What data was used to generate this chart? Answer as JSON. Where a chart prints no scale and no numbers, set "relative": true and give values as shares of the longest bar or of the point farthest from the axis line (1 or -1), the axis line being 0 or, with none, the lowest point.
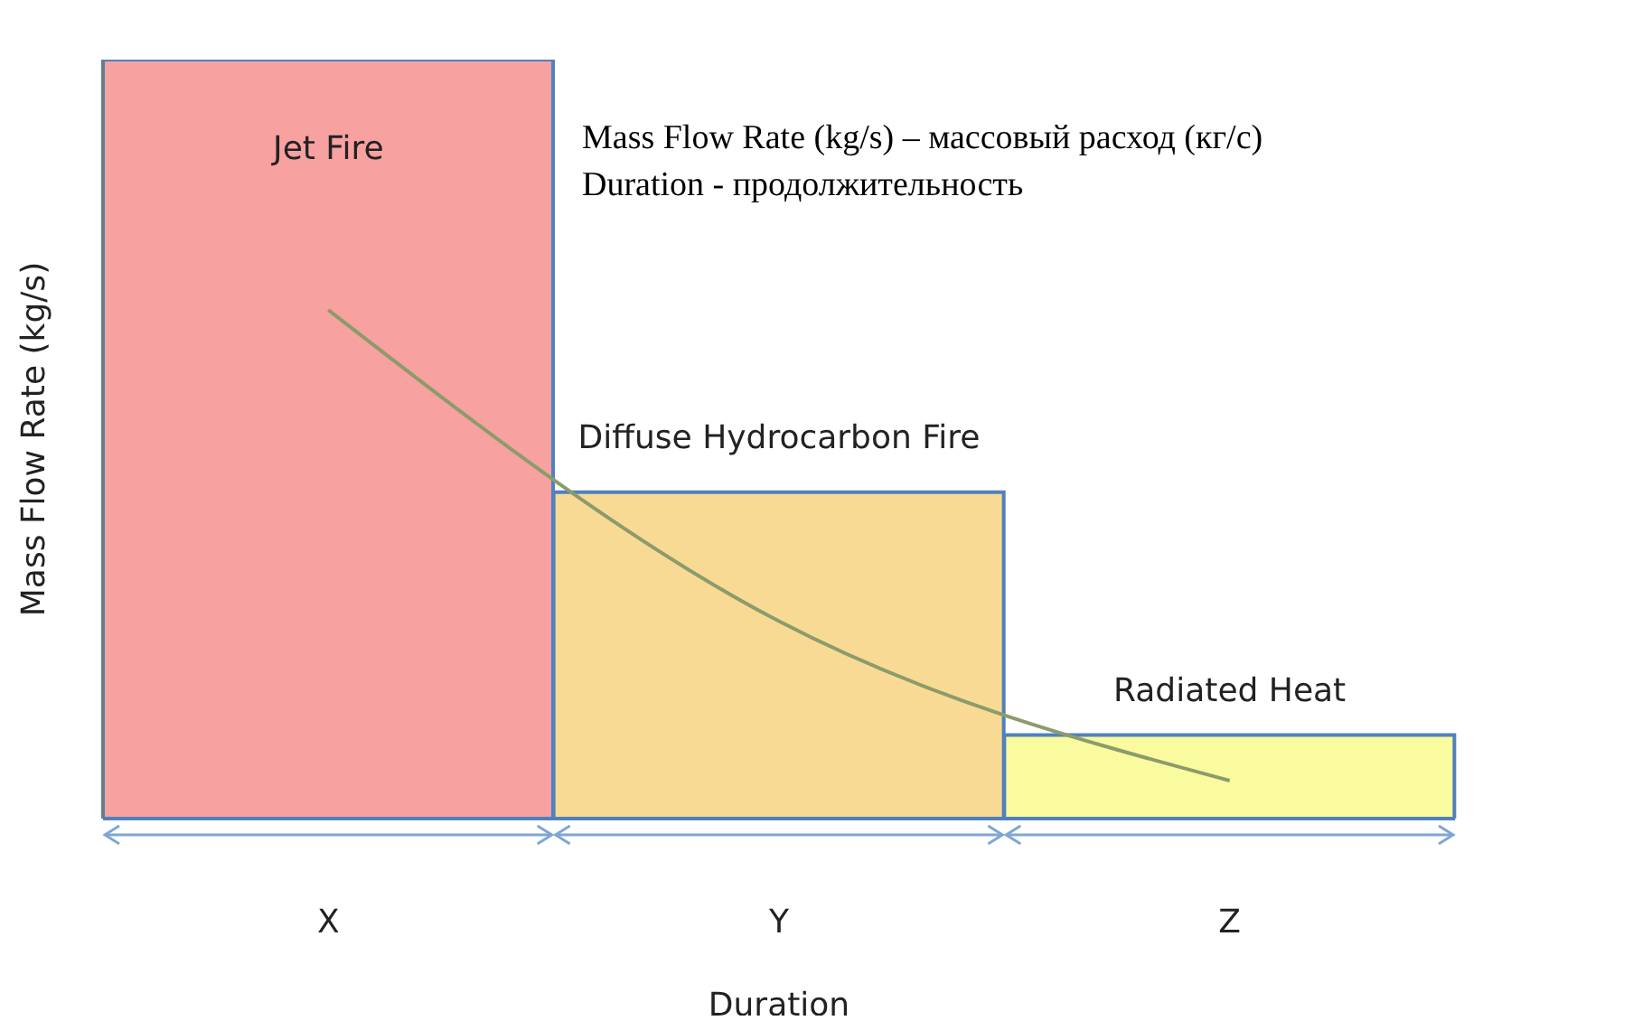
{
  "chart_data": {
    "type": "bar",
    "relative": true,
    "xlabel": "Duration",
    "ylabel": "Mass Flow Rate (kg/s)",
    "categories": [
      "X",
      "Y",
      "Z"
    ],
    "series": [
      {
        "values": [
          1,
          0.43,
          0.11
        ],
        "colors": [
          "#f7a1a0",
          "#f9da94",
          "#fafa9e"
        ]
      },
      {
        "type": "line",
        "color": "#8c9b6c",
        "values": [
          0.67,
          0.26,
          0.05
        ],
        "marker": "none"
      }
    ],
    "annotations": [
      "Jet Fire",
      "Diffuse Hydrocarbon Fire",
      "Radiated Heat",
      "Mass Flow Rate (kg/s) – массовый расход (кг/с)",
      "Duration - продолжительность"
    ]
  }
}
